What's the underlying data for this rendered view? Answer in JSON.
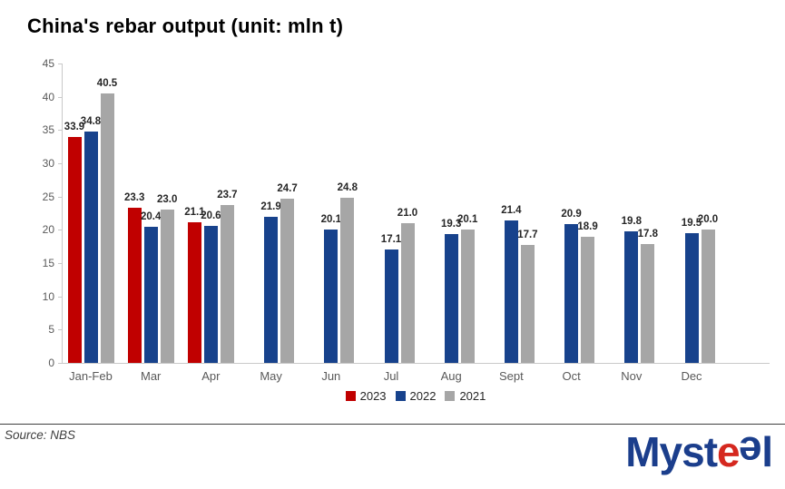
{
  "title": "China's rebar output (unit: mln t)",
  "source": "Source: NBS",
  "logo": {
    "pre": "Myst",
    "e_red": "e",
    "e_blue": "e",
    "post": "l",
    "blue": "#1b3e8c",
    "red": "#d5281f"
  },
  "colors": {
    "axis_line": "#c9c9c9",
    "axis_label": "#595959",
    "data_label": "#262626"
  },
  "chart_data": {
    "type": "bar",
    "title": "China's rebar output (unit: mln t)",
    "categories": [
      "Jan-Feb",
      "Mar",
      "Apr",
      "May",
      "Jun",
      "Jul",
      "Aug",
      "Sept",
      "Oct",
      "Nov",
      "Dec"
    ],
    "series": [
      {
        "name": "2023",
        "color": "#c00000",
        "values": [
          33.9,
          23.3,
          21.1,
          null,
          null,
          null,
          null,
          null,
          null,
          null,
          null
        ]
      },
      {
        "name": "2022",
        "color": "#17428c",
        "values": [
          34.8,
          20.4,
          20.6,
          21.9,
          20.1,
          17.1,
          19.3,
          21.4,
          20.9,
          19.8,
          19.5
        ]
      },
      {
        "name": "2021",
        "color": "#a6a6a6",
        "values": [
          40.5,
          23.0,
          23.7,
          24.7,
          24.8,
          21.0,
          20.1,
          17.7,
          18.9,
          17.8,
          20.0
        ]
      }
    ],
    "ylabel": "",
    "xlabel": "",
    "ylim": [
      0,
      45
    ],
    "yticks": [
      0,
      5,
      10,
      15,
      20,
      25,
      30,
      35,
      40,
      45
    ],
    "grid": false,
    "data_labels": true,
    "legend_position": "bottom"
  }
}
